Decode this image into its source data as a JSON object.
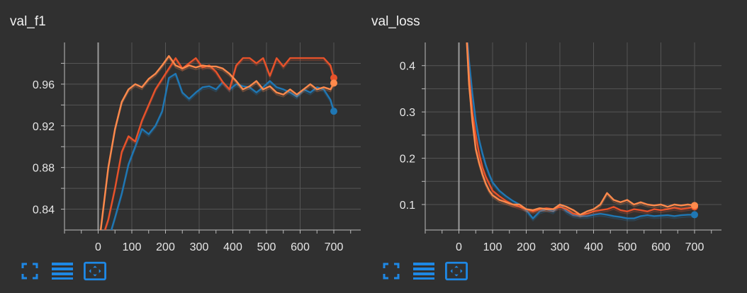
{
  "chart_data": [
    {
      "type": "line",
      "title": "val_f1",
      "xlim": [
        -100,
        780
      ],
      "ylim": [
        0.82,
        1.0
      ],
      "xticks": [
        0,
        100,
        200,
        300,
        400,
        500,
        600,
        700
      ],
      "yticks": [
        0.84,
        0.88,
        0.92,
        0.96
      ],
      "yticks_minor": [
        0.86,
        0.9,
        0.94,
        0.98
      ],
      "grid": true,
      "series": [
        {
          "color": "#1f77b4",
          "x": [
            0,
            30,
            50,
            70,
            90,
            110,
            130,
            150,
            170,
            190,
            210,
            230,
            250,
            270,
            290,
            310,
            330,
            350,
            370,
            390,
            410,
            430,
            450,
            470,
            490,
            510,
            530,
            550,
            570,
            590,
            610,
            630,
            650,
            670,
            690,
            700
          ],
          "y": [
            0.8,
            0.81,
            0.832,
            0.855,
            0.883,
            0.9,
            0.917,
            0.912,
            0.92,
            0.934,
            0.966,
            0.97,
            0.952,
            0.946,
            0.952,
            0.957,
            0.958,
            0.955,
            0.962,
            0.955,
            0.96,
            0.958,
            0.957,
            0.952,
            0.957,
            0.963,
            0.957,
            0.955,
            0.952,
            0.948,
            0.955,
            0.952,
            0.957,
            0.955,
            0.945,
            0.934
          ]
        },
        {
          "color": "#e8522a",
          "x": [
            0,
            30,
            50,
            70,
            90,
            110,
            130,
            150,
            170,
            190,
            210,
            230,
            250,
            270,
            290,
            310,
            330,
            350,
            370,
            390,
            410,
            430,
            450,
            470,
            490,
            510,
            530,
            550,
            570,
            590,
            610,
            630,
            650,
            670,
            690,
            700
          ],
          "y": [
            0.8,
            0.83,
            0.86,
            0.895,
            0.91,
            0.905,
            0.925,
            0.94,
            0.955,
            0.965,
            0.975,
            0.985,
            0.975,
            0.98,
            0.985,
            0.976,
            0.978,
            0.972,
            0.962,
            0.955,
            0.978,
            0.985,
            0.985,
            0.98,
            0.985,
            0.968,
            0.985,
            0.977,
            0.985,
            0.985,
            0.985,
            0.985,
            0.985,
            0.985,
            0.978,
            0.966
          ]
        },
        {
          "color": "#ff8a4c",
          "x": [
            0,
            30,
            50,
            70,
            90,
            110,
            130,
            150,
            170,
            190,
            210,
            230,
            250,
            270,
            290,
            310,
            330,
            350,
            370,
            390,
            410,
            430,
            450,
            470,
            490,
            510,
            530,
            550,
            570,
            590,
            610,
            630,
            650,
            670,
            690,
            700
          ],
          "y": [
            0.8,
            0.88,
            0.917,
            0.943,
            0.955,
            0.96,
            0.957,
            0.965,
            0.97,
            0.978,
            0.987,
            0.978,
            0.975,
            0.978,
            0.976,
            0.978,
            0.977,
            0.977,
            0.975,
            0.97,
            0.963,
            0.955,
            0.958,
            0.963,
            0.955,
            0.958,
            0.952,
            0.95,
            0.955,
            0.95,
            0.955,
            0.96,
            0.955,
            0.957,
            0.955,
            0.961
          ]
        }
      ]
    },
    {
      "type": "line",
      "title": "val_loss",
      "xlim": [
        -100,
        780
      ],
      "ylim": [
        0.045,
        0.45
      ],
      "xticks": [
        0,
        100,
        200,
        300,
        400,
        500,
        600,
        700
      ],
      "yticks": [
        0.1,
        0.2,
        0.3,
        0.4
      ],
      "yticks_minor": [
        0.15,
        0.25,
        0.35
      ],
      "grid": true,
      "series": [
        {
          "color": "#1f77b4",
          "x": [
            20,
            30,
            40,
            50,
            60,
            70,
            80,
            90,
            100,
            120,
            140,
            160,
            180,
            200,
            220,
            240,
            260,
            280,
            300,
            320,
            340,
            360,
            380,
            400,
            420,
            440,
            460,
            480,
            500,
            520,
            540,
            560,
            580,
            600,
            620,
            640,
            660,
            680,
            700
          ],
          "y": [
            0.5,
            0.41,
            0.34,
            0.28,
            0.24,
            0.21,
            0.185,
            0.165,
            0.148,
            0.13,
            0.118,
            0.108,
            0.1,
            0.088,
            0.07,
            0.085,
            0.09,
            0.085,
            0.1,
            0.085,
            0.077,
            0.075,
            0.075,
            0.078,
            0.08,
            0.078,
            0.075,
            0.073,
            0.07,
            0.07,
            0.075,
            0.077,
            0.075,
            0.076,
            0.077,
            0.075,
            0.077,
            0.078,
            0.078
          ]
        },
        {
          "color": "#e8522a",
          "x": [
            20,
            30,
            40,
            50,
            60,
            70,
            80,
            90,
            100,
            120,
            140,
            160,
            180,
            200,
            220,
            240,
            260,
            280,
            300,
            320,
            340,
            360,
            380,
            400,
            420,
            440,
            460,
            480,
            500,
            520,
            540,
            560,
            580,
            600,
            620,
            640,
            660,
            680,
            700
          ],
          "y": [
            0.5,
            0.38,
            0.3,
            0.25,
            0.21,
            0.18,
            0.16,
            0.145,
            0.13,
            0.118,
            0.108,
            0.1,
            0.095,
            0.09,
            0.085,
            0.09,
            0.092,
            0.09,
            0.095,
            0.09,
            0.08,
            0.078,
            0.08,
            0.085,
            0.088,
            0.09,
            0.095,
            0.088,
            0.085,
            0.09,
            0.088,
            0.085,
            0.09,
            0.088,
            0.09,
            0.093,
            0.09,
            0.092,
            0.095
          ]
        },
        {
          "color": "#ff8a4c",
          "x": [
            20,
            30,
            40,
            50,
            60,
            70,
            80,
            90,
            100,
            120,
            140,
            160,
            180,
            200,
            220,
            240,
            260,
            280,
            300,
            320,
            340,
            360,
            380,
            400,
            420,
            440,
            460,
            480,
            500,
            520,
            540,
            560,
            580,
            600,
            620,
            640,
            660,
            680,
            700
          ],
          "y": [
            0.5,
            0.36,
            0.28,
            0.22,
            0.19,
            0.165,
            0.145,
            0.13,
            0.12,
            0.11,
            0.105,
            0.1,
            0.1,
            0.09,
            0.088,
            0.092,
            0.09,
            0.09,
            0.1,
            0.095,
            0.088,
            0.078,
            0.085,
            0.09,
            0.1,
            0.125,
            0.11,
            0.105,
            0.11,
            0.1,
            0.105,
            0.1,
            0.098,
            0.1,
            0.095,
            0.1,
            0.098,
            0.1,
            0.098
          ]
        }
      ]
    }
  ],
  "panels": {
    "left": {
      "title": "val_f1"
    },
    "right": {
      "title": "val_loss"
    }
  },
  "toolbar": {
    "icons": [
      "fullscreen-icon",
      "toggle-list-icon",
      "fit-domain-icon"
    ],
    "accent": "#1e88e5"
  },
  "colors": {
    "background": "#303030",
    "grid": "#555555",
    "axis": "#bbbbbb",
    "zero_line": "#9a9a9a",
    "text": "#e6e6e6"
  }
}
